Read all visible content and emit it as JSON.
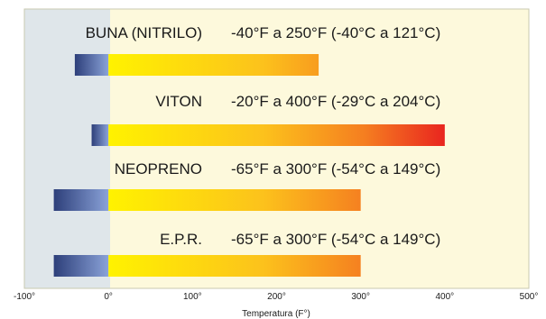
{
  "chart_data": {
    "type": "bar",
    "orientation": "horizontal",
    "xlabel": "Temperatura (F°)",
    "xlim": [
      -100,
      500
    ],
    "xticks": [
      -100,
      0,
      100,
      200,
      300,
      400,
      500
    ],
    "tick_labels": [
      "-100°",
      "0°",
      "100°",
      "200°",
      "300°",
      "400°",
      "500°"
    ],
    "grid": false,
    "legend": "none",
    "regions": {
      "below_zero": "#dfe6ea",
      "above_zero": "#fdf9dc"
    },
    "series": [
      {
        "name": "BUNA (NITRILO)",
        "range_text": "-40°F a 250°F (-40°C a 121°C)",
        "min": -40,
        "max": 250
      },
      {
        "name": "VITON",
        "range_text": "-20°F a 400°F (-29°C a 204°C)",
        "min": -20,
        "max": 400
      },
      {
        "name": "NEOPRENO",
        "range_text": "-65°F a 300°F (-54°C a 149°C)",
        "min": -65,
        "max": 300
      },
      {
        "name": "E.P.R.",
        "range_text": "-65°F a 300°F (-54°C a 149°C)",
        "min": -65,
        "max": 300
      }
    ]
  }
}
